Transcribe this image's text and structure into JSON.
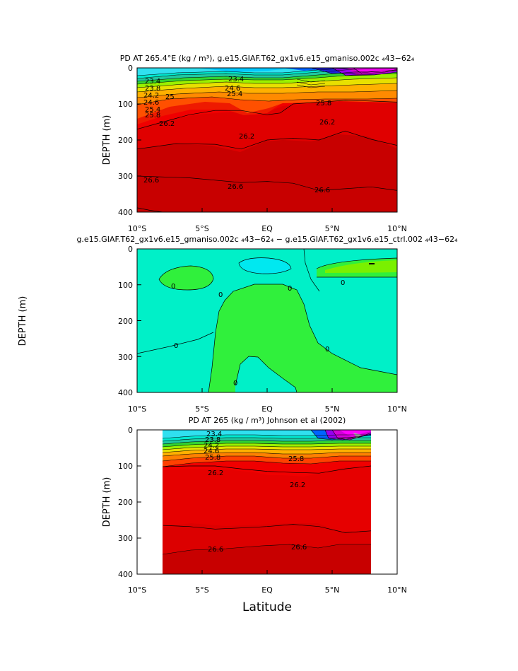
{
  "chart_data": [
    {
      "type": "heatmap",
      "title": "PD AT 265.4°E (kg / m³), g.e15.GIAF.T62_gx1v6.e15_gmaniso.002c ₄43−62₄",
      "ylabel": "DEPTH (m)",
      "xlabel": "",
      "xlim": [
        -10,
        10
      ],
      "ylim": [
        400,
        0
      ],
      "x_ticks": [
        "10°S",
        "5°S",
        "EQ",
        "5°N",
        "10°N"
      ],
      "y_ticks": [
        "0",
        "100",
        "200",
        "300",
        "400"
      ],
      "contour_labels": [
        "23.4",
        "23.8",
        "24.2",
        "24.6",
        "25",
        "25.4",
        "25.8",
        "26.2",
        "26.2",
        "26.2",
        "26.6",
        "26.6",
        "26.6",
        "25.8",
        "25.4",
        "23.4",
        "24.6"
      ],
      "isopycnals": [
        {
          "level": 26.2,
          "points": [
            [
              -10,
              170
            ],
            [
              -8,
              150
            ],
            [
              -6,
              130
            ],
            [
              -4,
              118
            ],
            [
              -2,
              118
            ],
            [
              0,
              130
            ],
            [
              1,
              125
            ],
            [
              2,
              100
            ],
            [
              4,
              95
            ],
            [
              6,
              90
            ],
            [
              8,
              92
            ],
            [
              10,
              95
            ]
          ]
        },
        {
          "level": 26.6,
          "points": [
            [
              -10,
              225
            ],
            [
              -7,
              210
            ],
            [
              -4,
              212
            ],
            [
              -2,
              225
            ],
            [
              0,
              200
            ],
            [
              2,
              195
            ],
            [
              4,
              200
            ],
            [
              6,
              175
            ],
            [
              8,
              198
            ],
            [
              10,
              215
            ]
          ]
        },
        {
          "level": 26.6,
          "points": [
            [
              -10,
              300
            ],
            [
              -6,
              305
            ],
            [
              -2,
              318
            ],
            [
              0,
              315
            ],
            [
              2,
              320
            ],
            [
              4,
              340
            ],
            [
              6,
              335
            ],
            [
              8,
              330
            ],
            [
              10,
              340
            ]
          ]
        },
        {
          "level": 26.6,
          "points": [
            [
              -10,
              388
            ],
            [
              -9,
              395
            ],
            [
              -8,
              400
            ]
          ]
        }
      ]
    },
    {
      "type": "heatmap",
      "title": "g.e15.GIAF.T62_gx1v6.e15_gmaniso.002c ₄43−62₄ − g.e15.GIAF.T62_gx1v6.e15_ctrl.002 ₄43−62₄",
      "ylabel": "DEPTH (m)",
      "xlabel": "",
      "xlim": [
        -10,
        10
      ],
      "ylim": [
        400,
        0
      ],
      "x_ticks": [
        "10°S",
        "5°S",
        "EQ",
        "5°N",
        "10°N"
      ],
      "y_ticks": [
        "0",
        "100",
        "200",
        "300",
        "400"
      ],
      "contour_labels": [
        "0",
        "0",
        "0",
        "0",
        "0",
        "0",
        "0"
      ]
    },
    {
      "type": "heatmap",
      "title": "PD AT 265 (kg / m³) Johnson et al (2002)",
      "ylabel": "DEPTH (m)",
      "xlabel": "Latitude",
      "xlim": [
        -10,
        10
      ],
      "ylim": [
        400,
        0
      ],
      "data_extent_x": [
        -8,
        8
      ],
      "x_ticks": [
        "10°S",
        "5°S",
        "EQ",
        "5°N",
        "10°N"
      ],
      "y_ticks": [
        "0",
        "100",
        "200",
        "300",
        "400"
      ],
      "contour_labels": [
        "23.4",
        "23.8",
        "24.2",
        "24.6",
        "25.8",
        "25.8",
        "26.2",
        "26.2",
        "26.6",
        "26.6"
      ],
      "isopycnals": [
        {
          "level": 26.2,
          "points": [
            [
              -8,
              102
            ],
            [
              -6,
              100
            ],
            [
              -4,
              100
            ],
            [
              -2,
              108
            ],
            [
              0,
              115
            ],
            [
              2,
              118
            ],
            [
              4,
              120
            ],
            [
              6,
              108
            ],
            [
              8,
              100
            ]
          ]
        },
        {
          "level": 26.6,
          "points": [
            [
              -8,
              265
            ],
            [
              -6,
              268
            ],
            [
              -4,
              275
            ],
            [
              -2,
              272
            ],
            [
              0,
              268
            ],
            [
              2,
              262
            ],
            [
              4,
              268
            ],
            [
              6,
              285
            ],
            [
              8,
              280
            ]
          ]
        }
      ]
    }
  ]
}
